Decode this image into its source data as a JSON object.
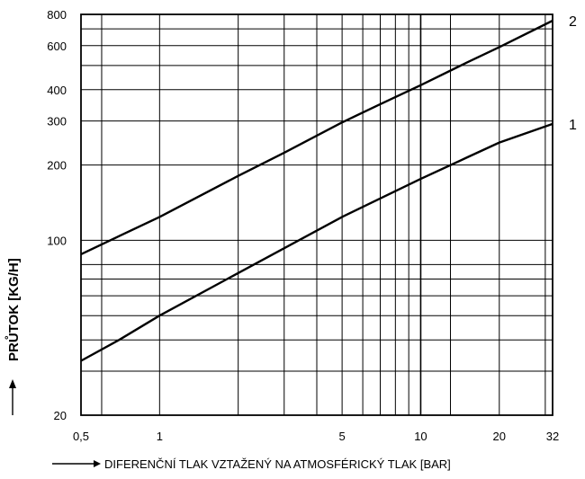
{
  "chart_data": {
    "type": "line",
    "xscale": "log",
    "yscale": "log",
    "xlim": [
      0.5,
      32
    ],
    "ylim": [
      20,
      800
    ],
    "grid": true,
    "xlabel": "DIFERENČNÍ TLAK VZTAŽENÝ NA ATMOSFÉRICKÝ TLAK [BAR]",
    "ylabel": "PRŮTOK [KG/H]",
    "xticks": [
      {
        "value": 0.5,
        "label": "0,5"
      },
      {
        "value": 1,
        "label": "1"
      },
      {
        "value": 5,
        "label": "5"
      },
      {
        "value": 10,
        "label": "10"
      },
      {
        "value": 20,
        "label": "20"
      },
      {
        "value": 32,
        "label": "32"
      }
    ],
    "yticks": [
      {
        "value": 20,
        "label": "20"
      },
      {
        "value": 100,
        "label": "100"
      },
      {
        "value": 200,
        "label": "200"
      },
      {
        "value": 300,
        "label": "300"
      },
      {
        "value": 400,
        "label": "400"
      },
      {
        "value": 600,
        "label": "600"
      },
      {
        "value": 800,
        "label": "800"
      }
    ],
    "x_gridlines": [
      0.6,
      1,
      2,
      3,
      4,
      5,
      6,
      7,
      8,
      9,
      10,
      13,
      20,
      30
    ],
    "y_gridlines": [
      20,
      30,
      40,
      50,
      60,
      70,
      80,
      100,
      200,
      300,
      400,
      500,
      600,
      700,
      800
    ],
    "series": [
      {
        "name": "1",
        "x": [
          0.5,
          0.7,
          1,
          2,
          3,
          5,
          7,
          10,
          15,
          20,
          32
        ],
        "y": [
          33,
          40,
          50,
          74,
          93,
          124,
          147,
          176,
          214,
          246,
          292
        ]
      },
      {
        "name": "2",
        "x": [
          0.5,
          0.7,
          1,
          2,
          3,
          5,
          7,
          10,
          15,
          20,
          32
        ],
        "y": [
          88,
          104,
          124,
          181,
          224,
          296,
          350,
          417,
          513,
          592,
          755
        ]
      }
    ]
  }
}
